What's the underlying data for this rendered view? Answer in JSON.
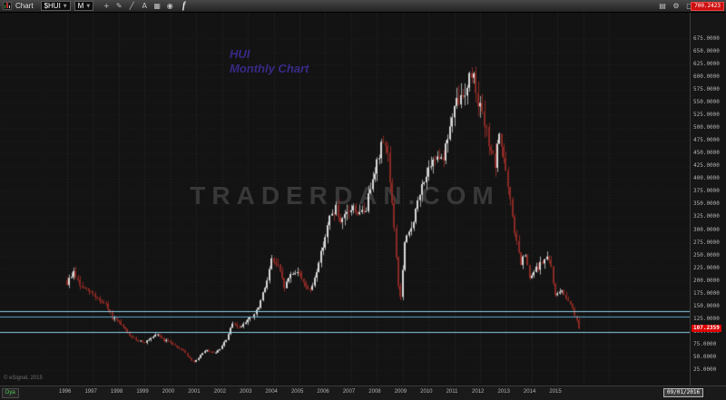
{
  "toolbar": {
    "window_title": "Chart",
    "symbol": "$HUI",
    "interval": "M",
    "tools": [
      {
        "name": "crosshair-tool-icon",
        "glyph": "+"
      },
      {
        "name": "pencil-tool-icon",
        "glyph": "✎"
      },
      {
        "name": "trendline-tool-icon",
        "glyph": "╱"
      },
      {
        "name": "text-tool-icon",
        "glyph": "A"
      },
      {
        "name": "grid-tool-icon",
        "glyph": "▦"
      },
      {
        "name": "snapshot-tool-icon",
        "glyph": "◉"
      }
    ],
    "facebook_label": "f",
    "right_icons": [
      {
        "name": "layout-icon",
        "glyph": "▤"
      },
      {
        "name": "settings-gear-icon",
        "glyph": "⚙"
      },
      {
        "name": "maximize-icon",
        "glyph": "▢"
      }
    ],
    "alert_value": "700.2423"
  },
  "chart": {
    "annotation_line1": "HUI",
    "annotation_line2": "Monthly Chart",
    "watermark": "TRADERDAN.COM",
    "copyright": "© eSignal, 2015",
    "last_price": "107.2359",
    "support_lines": [
      {
        "price": 140,
        "color": "#8fd2e8"
      },
      {
        "price": 130,
        "color": "#5fa8cc"
      },
      {
        "price": 100,
        "color": "#8fd2e8"
      }
    ],
    "colors": {
      "background": "#131313",
      "candle_up": "#d9d9d9",
      "candle_up_wick": "#a8a8a8",
      "candle_down": "#8a2a24",
      "grid_vertical": "#2e2e2e",
      "grid_horizontal": "rgba(255,255,255,0.045)",
      "annotation": "#372a86",
      "last_price_tag": "#dd0000"
    }
  },
  "y_axis": {
    "labels": [
      "675.0000",
      "650.0000",
      "625.0000",
      "600.0000",
      "575.0000",
      "550.0000",
      "525.0000",
      "500.0000",
      "475.0000",
      "450.0000",
      "425.0000",
      "400.0000",
      "375.0000",
      "350.0000",
      "325.0000",
      "300.0000",
      "275.0000",
      "250.0000",
      "225.0000",
      "200.0000",
      "175.0000",
      "150.0000",
      "125.0000",
      "100.0000",
      "75.0000",
      "50.0000",
      "25.0000"
    ]
  },
  "x_axis": {
    "years": [
      "1996",
      "1997",
      "1998",
      "1999",
      "2000",
      "2001",
      "2002",
      "2003",
      "2004",
      "2005",
      "2006",
      "2007",
      "2008",
      "2009",
      "2010",
      "2011",
      "2012",
      "2013",
      "2014",
      "2015"
    ],
    "interval_button": "Dya",
    "date_cursor": "09/01/2016"
  },
  "chart_data": {
    "type": "candlestick",
    "title": "HUI Monthly Chart",
    "symbol": "$HUI",
    "timeframe": "monthly",
    "x_start": 1996.0,
    "x_end": 2015.83,
    "ylim": [
      -5,
      726
    ],
    "y_tick_step": 25,
    "seed": 9,
    "last_price": 107.2359,
    "support_levels": [
      140,
      130,
      100
    ],
    "notable_points": {
      "peak_2011_high": 638,
      "low_2000": 38,
      "crash_low_2008": 160,
      "final_close_2015": 107.2359
    },
    "close_anchors": [
      [
        1996.0,
        195
      ],
      [
        1996.25,
        218
      ],
      [
        1996.5,
        190
      ],
      [
        1996.75,
        182
      ],
      [
        1997.0,
        175
      ],
      [
        1997.25,
        162
      ],
      [
        1997.5,
        152
      ],
      [
        1997.75,
        128
      ],
      [
        1998.0,
        118
      ],
      [
        1998.25,
        104
      ],
      [
        1998.5,
        88
      ],
      [
        1998.75,
        84
      ],
      [
        1999.0,
        80
      ],
      [
        1999.25,
        86
      ],
      [
        1999.5,
        96
      ],
      [
        1999.75,
        84
      ],
      [
        2000.0,
        80
      ],
      [
        2000.25,
        70
      ],
      [
        2000.5,
        64
      ],
      [
        2000.75,
        48
      ],
      [
        2000.92,
        40
      ],
      [
        2001.17,
        55
      ],
      [
        2001.42,
        64
      ],
      [
        2001.67,
        58
      ],
      [
        2001.92,
        66
      ],
      [
        2002.17,
        86
      ],
      [
        2002.42,
        116
      ],
      [
        2002.67,
        108
      ],
      [
        2002.92,
        122
      ],
      [
        2003.17,
        128
      ],
      [
        2003.42,
        148
      ],
      [
        2003.67,
        188
      ],
      [
        2003.92,
        242
      ],
      [
        2004.17,
        228
      ],
      [
        2004.42,
        188
      ],
      [
        2004.67,
        214
      ],
      [
        2004.92,
        220
      ],
      [
        2005.17,
        198
      ],
      [
        2005.42,
        178
      ],
      [
        2005.67,
        222
      ],
      [
        2005.92,
        272
      ],
      [
        2006.17,
        324
      ],
      [
        2006.42,
        344
      ],
      [
        2006.58,
        308
      ],
      [
        2006.83,
        332
      ],
      [
        2007.08,
        344
      ],
      [
        2007.33,
        330
      ],
      [
        2007.58,
        342
      ],
      [
        2007.83,
        408
      ],
      [
        2008.08,
        444
      ],
      [
        2008.25,
        482
      ],
      [
        2008.42,
        448
      ],
      [
        2008.58,
        352
      ],
      [
        2008.75,
        248
      ],
      [
        2008.83,
        190
      ],
      [
        2008.92,
        168
      ],
      [
        2009.08,
        272
      ],
      [
        2009.33,
        305
      ],
      [
        2009.58,
        352
      ],
      [
        2009.83,
        402
      ],
      [
        2010.08,
        418
      ],
      [
        2010.33,
        452
      ],
      [
        2010.58,
        442
      ],
      [
        2010.83,
        502
      ],
      [
        2011.08,
        548
      ],
      [
        2011.33,
        562
      ],
      [
        2011.58,
        598
      ],
      [
        2011.72,
        610
      ],
      [
        2011.92,
        555
      ],
      [
        2012.17,
        505
      ],
      [
        2012.42,
        458
      ],
      [
        2012.58,
        422
      ],
      [
        2012.75,
        492
      ],
      [
        2012.92,
        442
      ],
      [
        2013.08,
        382
      ],
      [
        2013.33,
        298
      ],
      [
        2013.58,
        232
      ],
      [
        2013.75,
        252
      ],
      [
        2013.92,
        202
      ],
      [
        2014.08,
        218
      ],
      [
        2014.33,
        232
      ],
      [
        2014.58,
        246
      ],
      [
        2014.75,
        228
      ],
      [
        2014.92,
        168
      ],
      [
        2015.08,
        182
      ],
      [
        2015.33,
        168
      ],
      [
        2015.58,
        148
      ],
      [
        2015.75,
        122
      ],
      [
        2015.83,
        108
      ]
    ]
  }
}
